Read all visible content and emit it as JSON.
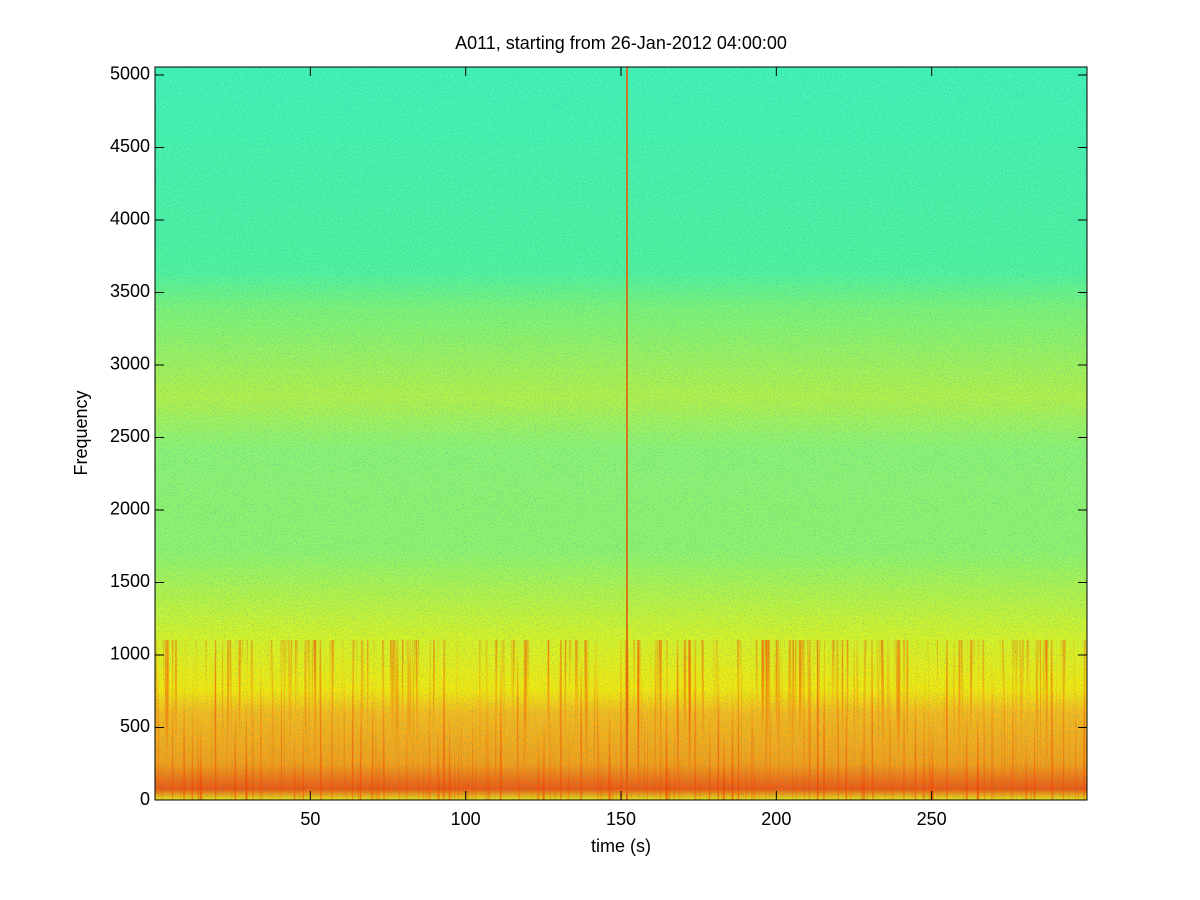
{
  "chart_data": {
    "type": "spectrogram",
    "title": "A011, starting from 26-Jan-2012 04:00:00",
    "x_label": "time (s)",
    "y_label": "Frequency",
    "xlim": [
      0,
      300
    ],
    "xticks": [
      50,
      100,
      150,
      200,
      250
    ],
    "ylim": [
      0,
      5055
    ],
    "yticks": [
      0,
      500,
      1000,
      1500,
      2000,
      2500,
      3000,
      3500,
      4000,
      4500,
      5000
    ]
  }
}
